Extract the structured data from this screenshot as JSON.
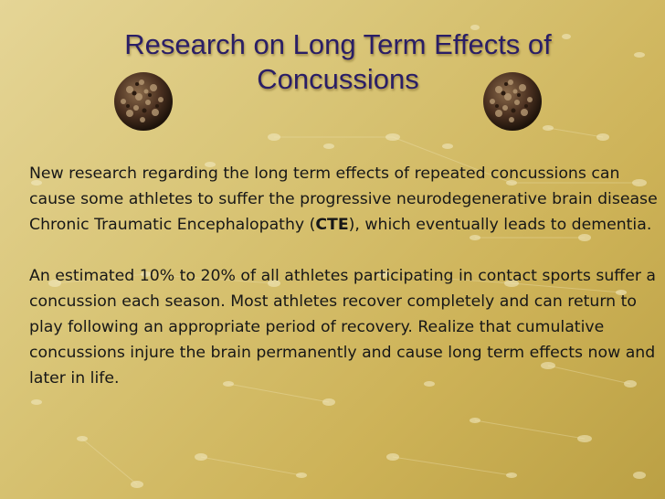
{
  "slide": {
    "title_line1": "Research on Long Term Effects of",
    "title_line2": "Concussions",
    "paragraph1": {
      "before": "New research regarding the long term effects of repeated concussions can cause some athletes to suffer the progressive  neurodegenerative brain disease Chronic Traumatic Encephalopathy (",
      "bold": "CTE",
      "after": "), which eventually leads to dementia."
    },
    "paragraph2": "An estimated 10% to 20% of all athletes participating in contact sports suffer a concussion each season.  Most athletes recover completely and can return to play following an appropriate period of recovery. Realize that cumulative concussions injure the brain permanently and cause long term effects now and later in life."
  },
  "icons": {
    "left": "textured-ball-icon",
    "right": "textured-ball-icon"
  },
  "colors": {
    "title": "#2a1e66",
    "text": "#171717",
    "background": "#d9c577"
  }
}
